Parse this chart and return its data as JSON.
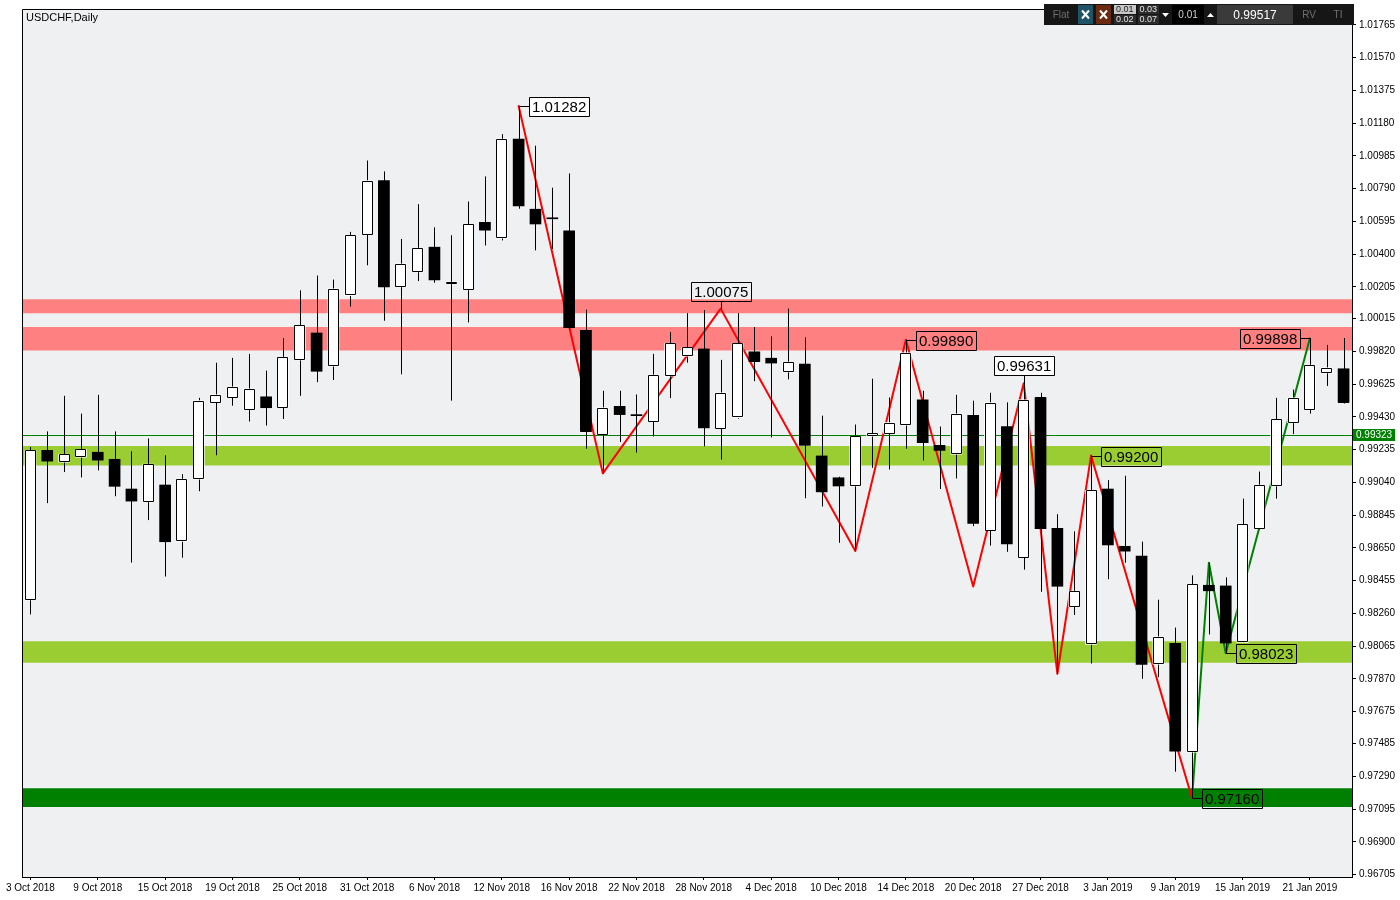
{
  "chart_data": {
    "type": "candlestick",
    "title": "USDCHF,Daily",
    "categories": [
      "3 Oct 2018",
      null,
      null,
      null,
      "9 Oct 2018",
      null,
      null,
      null,
      "15 Oct 2018",
      null,
      null,
      null,
      "19 Oct 2018",
      null,
      null,
      null,
      "25 Oct 2018",
      null,
      null,
      null,
      "31 Oct 2018",
      null,
      null,
      null,
      "6 Nov 2018",
      null,
      null,
      null,
      "12 Nov 2018",
      null,
      null,
      null,
      "16 Nov 2018",
      null,
      null,
      null,
      "22 Nov 2018",
      null,
      null,
      null,
      "28 Nov 2018",
      null,
      null,
      null,
      "4 Dec 2018",
      null,
      null,
      null,
      "10 Dec 2018",
      null,
      null,
      null,
      "14 Dec 2018",
      null,
      null,
      null,
      "20 Dec 2018",
      null,
      null,
      null,
      "27 Dec 2018",
      null,
      null,
      null,
      "3 Jan 2019",
      null,
      null,
      null,
      "9 Jan 2019",
      null,
      null,
      null,
      "15 Jan 2019",
      null,
      null,
      null,
      "21 Jan 2019",
      null,
      null
    ],
    "ohlc": [
      [
        0.9834,
        0.99251,
        0.98254,
        0.99231
      ],
      [
        0.99231,
        0.99344,
        0.98917,
        0.99167
      ],
      [
        0.99161,
        0.99556,
        0.99102,
        0.99208
      ],
      [
        0.9919,
        0.9945,
        0.9907,
        0.99237
      ],
      [
        0.9922,
        0.99562,
        0.99112,
        0.99173
      ],
      [
        0.99178,
        0.99344,
        0.98958,
        0.99017
      ],
      [
        0.99001,
        0.99226,
        0.98563,
        0.98929
      ],
      [
        0.98925,
        0.99302,
        0.98816,
        0.99149
      ],
      [
        0.99025,
        0.99202,
        0.9848,
        0.98687
      ],
      [
        0.98689,
        0.9909,
        0.98592,
        0.9906
      ],
      [
        0.9906,
        0.99544,
        0.98988,
        0.99527
      ],
      [
        0.99517,
        0.99753,
        0.99202,
        0.99562
      ],
      [
        0.99546,
        0.99782,
        0.99497,
        0.99609
      ],
      [
        0.99473,
        0.99806,
        0.99403,
        0.99597
      ],
      [
        0.9955,
        0.99706,
        0.99379,
        0.99485
      ],
      [
        0.99485,
        0.999,
        0.99418,
        0.99786
      ],
      [
        0.99769,
        1.00184,
        0.99556,
        0.99975
      ],
      [
        0.9993,
        1.00272,
        0.99637,
        0.99702
      ],
      [
        0.99733,
        1.00248,
        0.9965,
        1.00193
      ],
      [
        1.00152,
        1.00532,
        1.00087,
        1.00512
      ],
      [
        1.00518,
        1.00957,
        1.00333,
        1.00837
      ],
      [
        1.00837,
        1.00892,
        1.00003,
        1.00205
      ],
      [
        1.00205,
        1.0049,
        0.99684,
        1.00341
      ],
      [
        1.00294,
        1.00697,
        1.00239,
        1.00435
      ],
      [
        1.00441,
        1.00559,
        1.00229,
        1.00246
      ],
      [
        1.00223,
        1.00512,
        0.99527,
        1.00233
      ],
      [
        1.00187,
        1.00713,
        0.99993,
        1.00577
      ],
      [
        1.00589,
        1.00862,
        1.00451,
        1.00542
      ],
      [
        1.00494,
        1.01114,
        1.00481,
        1.01084
      ],
      [
        1.01084,
        1.01282,
        1.0067,
        1.00687
      ],
      [
        1.00667,
        1.01045,
        1.00422,
        1.00579
      ],
      [
        1.0061,
        1.00795,
        1.00431,
        1.0061
      ],
      [
        1.00538,
        1.0088,
        0.99955,
        0.99961
      ],
      [
        0.99946,
        1.00069,
        0.99241,
        0.99342
      ],
      [
        0.99324,
        0.99586,
        0.99094,
        0.99485
      ],
      [
        0.99493,
        0.99586,
        0.99281,
        0.99444
      ],
      [
        0.99438,
        0.99564,
        0.99218,
        0.99438
      ],
      [
        0.99403,
        0.99806,
        0.99314,
        0.9968
      ],
      [
        0.99674,
        0.99936,
        0.99542,
        0.99869
      ],
      [
        0.99792,
        1.00048,
        0.99753,
        0.99845
      ],
      [
        0.99835,
        1.00066,
        0.99255,
        0.99365
      ],
      [
        0.99361,
        0.9977,
        0.99176,
        0.99574
      ],
      [
        0.99426,
        1.00048,
        0.9942,
        0.99869
      ],
      [
        0.99818,
        0.99965,
        0.99643,
        0.99761
      ],
      [
        0.9978,
        0.9991,
        0.99308,
        0.99751
      ],
      [
        0.99698,
        1.00075,
        0.99654,
        0.99757
      ],
      [
        0.99745,
        0.99904,
        0.98946,
        0.99261
      ],
      [
        0.99198,
        0.99438,
        0.98897,
        0.98984
      ],
      [
        0.99068,
        0.99074,
        0.98681,
        0.99019
      ],
      [
        0.99019,
        0.99385,
        0.98632,
        0.99314
      ],
      [
        0.99316,
        0.99658,
        0.99127,
        0.99332
      ],
      [
        0.99332,
        0.99546,
        0.99117,
        0.99397
      ],
      [
        0.99381,
        0.9989,
        0.99241,
        0.99812
      ],
      [
        0.99532,
        0.99586,
        0.99171,
        0.99277
      ],
      [
        0.99261,
        0.99373,
        0.99001,
        0.99231
      ],
      [
        0.99208,
        0.99562,
        0.99064,
        0.99448
      ],
      [
        0.9944,
        0.99527,
        0.9878,
        0.98796
      ],
      [
        0.98755,
        0.99574,
        0.98664,
        0.99515
      ],
      [
        0.99373,
        0.99517,
        0.98627,
        0.98674
      ],
      [
        0.98594,
        0.99631,
        0.98521,
        0.99532
      ],
      [
        0.99546,
        0.99574,
        0.98389,
        0.98765
      ],
      [
        0.98767,
        0.98851,
        0.97901,
        0.98422
      ],
      [
        0.983,
        0.98749,
        0.98251,
        0.98393
      ],
      [
        0.98076,
        0.992,
        0.97962,
        0.98993
      ],
      [
        0.99001,
        0.99054,
        0.98464,
        0.98668
      ],
      [
        0.9866,
        0.9908,
        0.98562,
        0.98631
      ],
      [
        0.98601,
        0.98688,
        0.97871,
        0.97956
      ],
      [
        0.97958,
        0.98342,
        0.97881,
        0.98121
      ],
      [
        0.98082,
        0.98176,
        0.97318,
        0.9744
      ],
      [
        0.97434,
        0.98487,
        0.9716,
        0.98434
      ],
      [
        0.98428,
        0.98562,
        0.98135,
        0.98395
      ],
      [
        0.98424,
        0.98475,
        0.98023,
        0.98084
      ],
      [
        0.98088,
        0.98944,
        0.98085,
        0.9879
      ],
      [
        0.98765,
        0.99105,
        0.9876,
        0.99025
      ],
      [
        0.99019,
        0.99544,
        0.98944,
        0.99416
      ],
      [
        0.99395,
        0.99593,
        0.99328,
        0.99544
      ],
      [
        0.99473,
        0.99898,
        0.9945,
        0.99739
      ],
      [
        0.99692,
        0.99859,
        0.99615,
        0.99723
      ],
      [
        0.99717,
        0.999,
        0.9951,
        0.99517
      ]
    ],
    "color": "#000000",
    "colors": [
      "#ffffff",
      "#000000",
      "#ffffff",
      "#ffffff",
      "#000000",
      "#000000",
      "#000000",
      "#ffffff",
      "#000000",
      "#ffffff",
      "#ffffff",
      "#ffffff",
      "#ffffff",
      "#ffffff",
      "#000000",
      "#ffffff",
      "#ffffff",
      "#000000",
      "#ffffff",
      "#ffffff",
      "#ffffff",
      "#000000",
      "#ffffff",
      "#ffffff",
      "#000000",
      "#ffffff",
      "#ffffff",
      "#000000",
      "#ffffff",
      "#000000",
      "#000000",
      "#000000",
      "#000000",
      "#000000",
      "#ffffff",
      "#000000",
      "#000000",
      "#ffffff",
      "#ffffff",
      "#ffffff",
      "#000000",
      "#ffffff",
      "#ffffff",
      "#000000",
      "#000000",
      "#ffffff",
      "#000000",
      "#000000",
      "#000000",
      "#ffffff",
      "#ffffff",
      "#ffffff",
      "#ffffff",
      "#000000",
      "#000000",
      "#ffffff",
      "#000000",
      "#ffffff",
      "#000000",
      "#ffffff",
      "#000000",
      "#000000",
      "#ffffff",
      "#ffffff",
      "#000000",
      "#000000",
      "#000000",
      "#ffffff",
      "#000000",
      "#ffffff",
      "#000000",
      "#000000",
      "#ffffff",
      "#ffffff",
      "#ffffff",
      "#ffffff",
      "#ffffff",
      "#ffffff",
      "#000000"
    ],
    "series": [
      {
        "type": "line",
        "color": "#ff0000",
        "values": [
          null,
          null,
          null,
          null,
          null,
          null,
          null,
          null,
          null,
          null,
          null,
          null,
          null,
          null,
          null,
          null,
          null,
          null,
          null,
          null,
          null,
          null,
          null,
          null,
          null,
          null,
          null,
          null,
          null,
          1.01282,
          null,
          null,
          null,
          null,
          0.99094,
          null,
          null,
          null,
          null,
          null,
          null,
          1.00075,
          null,
          null,
          null,
          null,
          null,
          null,
          null,
          0.98632,
          null,
          null,
          0.9989,
          null,
          null,
          null,
          0.9842,
          null,
          null,
          0.99631,
          null,
          0.97901,
          null,
          0.992,
          null,
          null,
          null,
          null,
          null,
          0.9716,
          null,
          null,
          null,
          null,
          null,
          null,
          null,
          null,
          null
        ],
        "value_labels": [
          null,
          null,
          null,
          null,
          null,
          null,
          null,
          null,
          null,
          null,
          null,
          null,
          null,
          null,
          null,
          null,
          null,
          null,
          null,
          null,
          null,
          null,
          null,
          null,
          null,
          null,
          null,
          null,
          null,
          "1.01282",
          null,
          null,
          null,
          null,
          null,
          null,
          null,
          null,
          null,
          null,
          null,
          "1.00075",
          null,
          null,
          null,
          null,
          null,
          null,
          null,
          null,
          null,
          null,
          "0.99890",
          null,
          null,
          null,
          null,
          null,
          null,
          "0.99631",
          null,
          null,
          null,
          "0.99200",
          null,
          null,
          null,
          null,
          null,
          "0.97160",
          null,
          null,
          null,
          null,
          null,
          null,
          null,
          null,
          null
        ]
      },
      {
        "type": "line",
        "color": "#008000",
        "values": [
          null,
          null,
          null,
          null,
          null,
          null,
          null,
          null,
          null,
          null,
          null,
          null,
          null,
          null,
          null,
          null,
          null,
          null,
          null,
          null,
          null,
          null,
          null,
          null,
          null,
          null,
          null,
          null,
          null,
          null,
          null,
          null,
          null,
          null,
          null,
          null,
          null,
          null,
          null,
          null,
          null,
          null,
          null,
          null,
          null,
          null,
          null,
          null,
          null,
          null,
          null,
          null,
          null,
          null,
          null,
          null,
          null,
          null,
          null,
          null,
          null,
          null,
          null,
          null,
          null,
          null,
          null,
          null,
          null,
          0.9716,
          0.98562,
          0.98023,
          null,
          null,
          null,
          null,
          0.99898,
          null,
          null
        ],
        "value_labels": [
          null,
          null,
          null,
          null,
          null,
          null,
          null,
          null,
          null,
          null,
          null,
          null,
          null,
          null,
          null,
          null,
          null,
          null,
          null,
          null,
          null,
          null,
          null,
          null,
          null,
          null,
          null,
          null,
          null,
          null,
          null,
          null,
          null,
          null,
          null,
          null,
          null,
          null,
          null,
          null,
          null,
          null,
          null,
          null,
          null,
          null,
          null,
          null,
          null,
          null,
          null,
          null,
          null,
          null,
          null,
          null,
          null,
          null,
          null,
          null,
          null,
          null,
          null,
          null,
          null,
          null,
          null,
          null,
          null,
          null,
          null,
          "0.98023",
          null,
          null,
          null,
          null,
          "0.99898",
          null,
          null
        ]
      }
    ],
    "ylim": [
      0.96691,
      1.01859
    ],
    "yticks": [
      1.01765,
      {
        "value": 1.0157,
        "label": "1.01570"
      },
      1.01375,
      {
        "value": 1.0118,
        "label": "1.01180"
      },
      1.00985,
      {
        "value": 1.0079,
        "label": "1.00790"
      },
      1.00595,
      {
        "value": 1.004,
        "label": "1.00400"
      },
      1.00205,
      1.00015,
      {
        "value": 0.9982,
        "label": "0.99820"
      },
      0.99625,
      {
        "value": 0.9943,
        "label": "0.99430"
      },
      0.99235,
      {
        "value": 0.9904,
        "label": "0.99040"
      },
      0.98845,
      {
        "value": 0.9865,
        "label": "0.98650"
      },
      0.98455,
      {
        "value": 0.9826,
        "label": "0.98260"
      },
      0.98065,
      {
        "value": 0.9787,
        "label": "0.97870"
      },
      0.97675,
      0.97485,
      {
        "value": 0.9729,
        "label": "0.97290"
      },
      0.97095,
      {
        "value": 0.969,
        "label": "0.96900"
      },
      0.96705
    ],
    "ref_lines": [
      {
        "axis": "y",
        "value": 0.99323,
        "label": "0.99323",
        "color": "#008000"
      }
    ],
    "bands": [
      {
        "axis": "y",
        "from": 1.00048,
        "to": 1.00131,
        "color": "#ff8080"
      },
      {
        "axis": "y",
        "from": 0.99825,
        "to": 0.99965,
        "color": "#ff8080"
      },
      {
        "axis": "y",
        "from": 0.99141,
        "to": 0.99257,
        "color": "#9acd32"
      },
      {
        "axis": "y",
        "from": 0.97966,
        "to": 0.98094,
        "color": "#9acd32"
      },
      {
        "axis": "y",
        "from": 0.97108,
        "to": 0.9722,
        "color": "#008000"
      }
    ],
    "annotations": [
      "Flat",
      "0.01",
      "0.03",
      "0.02",
      "0.07",
      "0.01",
      "0.99517",
      "RV",
      "TI"
    ]
  }
}
